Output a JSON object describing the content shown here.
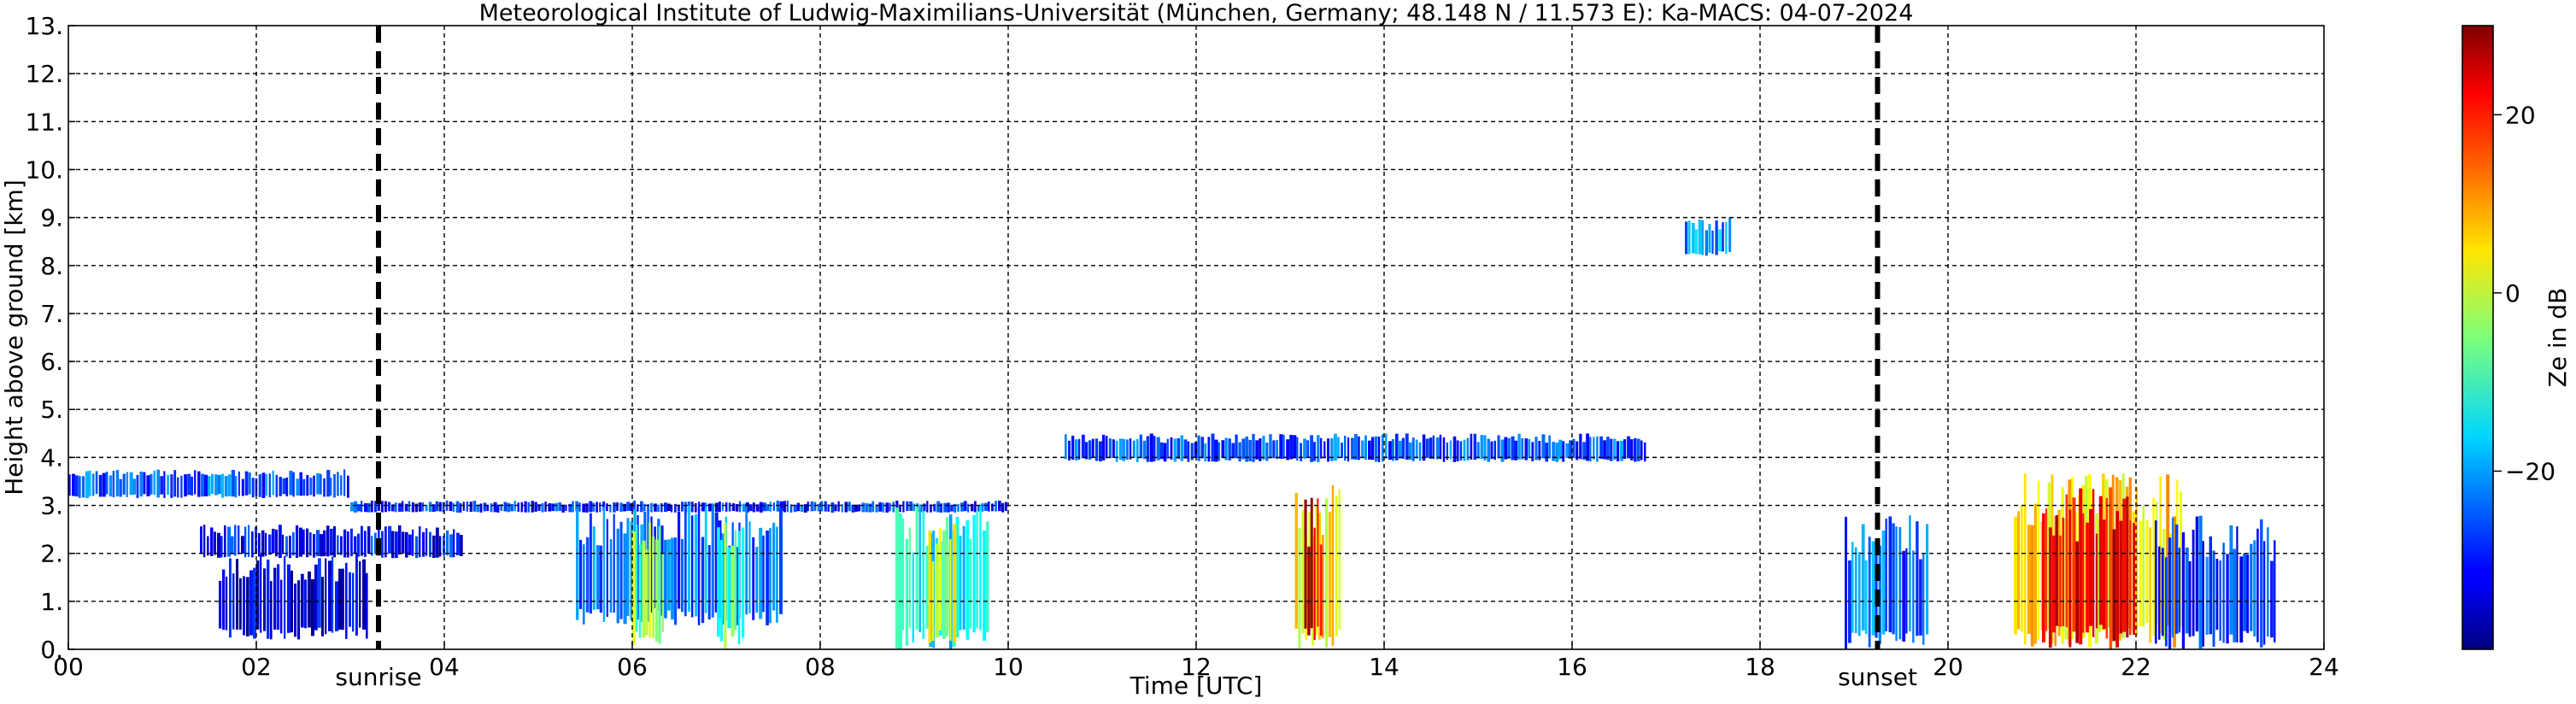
{
  "chart_data": {
    "type": "heatmap",
    "title": "Meteorological Institute of Ludwig-Maximilians-Universität (München, Germany; 48.148 N / 11.573 E):    Ka-MACS: 04-07-2024",
    "xlabel": "Time [UTC]",
    "ylabel": "Height above ground [km]",
    "xlim": [
      0,
      24
    ],
    "ylim": [
      0,
      13
    ],
    "x_ticks": [
      "00",
      "02",
      "04",
      "06",
      "08",
      "10",
      "12",
      "14",
      "16",
      "18",
      "20",
      "22",
      "24"
    ],
    "x_tick_values": [
      0,
      2,
      4,
      6,
      8,
      10,
      12,
      14,
      16,
      18,
      20,
      22,
      24
    ],
    "y_ticks": [
      "0.",
      "1.",
      "2.",
      "3.",
      "4.",
      "5.",
      "6.",
      "7.",
      "8.",
      "9.",
      "10.",
      "11.",
      "12.",
      "13."
    ],
    "y_tick_values": [
      0,
      1,
      2,
      3,
      4,
      5,
      6,
      7,
      8,
      9,
      10,
      11,
      12,
      13
    ],
    "grid": true,
    "events": [
      {
        "label": "sunrise",
        "x": 3.3
      },
      {
        "label": "sunset",
        "x": 19.25
      }
    ],
    "colorbar": {
      "label": "Ze in dB",
      "range": [
        -40,
        30
      ],
      "ticks": [
        "20",
        "0",
        "−20"
      ],
      "tick_values": [
        20,
        0,
        -20
      ],
      "colormap": "jet"
    },
    "echo_regions": [
      {
        "t0": 0.0,
        "t1": 3.0,
        "h0": 3.15,
        "h1": 3.75,
        "ze": -25
      },
      {
        "t0": 3.0,
        "t1": 10.0,
        "h0": 2.85,
        "h1": 3.1,
        "ze": -28
      },
      {
        "t0": 1.4,
        "t1": 4.2,
        "h0": 1.9,
        "h1": 2.6,
        "ze": -30
      },
      {
        "t0": 1.6,
        "t1": 3.2,
        "h0": 0.2,
        "h1": 2.0,
        "ze": -33
      },
      {
        "t0": 5.4,
        "t1": 7.6,
        "h0": 0.5,
        "h1": 3.0,
        "ze": -24
      },
      {
        "t0": 6.0,
        "t1": 6.35,
        "h0": 0.0,
        "h1": 3.0,
        "ze": -5
      },
      {
        "t0": 6.9,
        "t1": 7.2,
        "h0": 0.0,
        "h1": 3.0,
        "ze": -8
      },
      {
        "t0": 8.8,
        "t1": 9.8,
        "h0": 0.0,
        "h1": 3.0,
        "ze": -14
      },
      {
        "t0": 9.15,
        "t1": 9.45,
        "h0": 0.0,
        "h1": 2.8,
        "ze": 0
      },
      {
        "t0": 10.6,
        "t1": 16.8,
        "h0": 3.9,
        "h1": 4.5,
        "ze": -26
      },
      {
        "t0": 13.05,
        "t1": 13.55,
        "h0": 0.0,
        "h1": 3.5,
        "ze": 5
      },
      {
        "t0": 13.15,
        "t1": 13.35,
        "h0": 0.0,
        "h1": 3.2,
        "ze": 25
      },
      {
        "t0": 17.2,
        "t1": 17.7,
        "h0": 8.2,
        "h1": 9.0,
        "ze": -22
      },
      {
        "t0": 18.9,
        "t1": 19.8,
        "h0": 0.0,
        "h1": 2.8,
        "ze": -24
      },
      {
        "t0": 20.7,
        "t1": 22.5,
        "h0": 0.0,
        "h1": 3.7,
        "ze": 5
      },
      {
        "t0": 21.0,
        "t1": 22.0,
        "h0": 0.0,
        "h1": 3.4,
        "ze": 22
      },
      {
        "t0": 22.2,
        "t1": 23.5,
        "h0": 0.0,
        "h1": 2.8,
        "ze": -28
      }
    ]
  }
}
